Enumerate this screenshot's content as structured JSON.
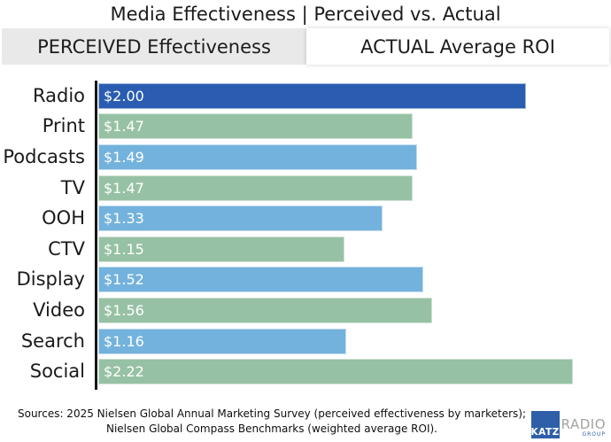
{
  "title": "Media Effectiveness | Perceived vs. Actual",
  "tabs": [
    {
      "label": "PERCEIVED Effectiveness"
    },
    {
      "label": "ACTUAL Average ROI"
    }
  ],
  "chart_data": {
    "type": "bar",
    "orientation": "horizontal",
    "title": "Media Effectiveness | Perceived vs. Actual",
    "xlabel": "",
    "ylabel": "",
    "xlim": [
      0,
      2.38
    ],
    "grid": false,
    "legend": "none",
    "value_prefix": "$",
    "categories": [
      "Radio",
      "Print",
      "Podcasts",
      "TV",
      "OOH",
      "CTV",
      "Display",
      "Video",
      "Search",
      "Social"
    ],
    "values": [
      2.0,
      1.47,
      1.49,
      1.47,
      1.33,
      1.15,
      1.52,
      1.56,
      1.16,
      2.22
    ],
    "value_labels": [
      "$2.00",
      "$1.47",
      "$1.49",
      "$1.47",
      "$1.33",
      "$1.15",
      "$1.52",
      "$1.56",
      "$1.16",
      "$2.22"
    ],
    "bar_colors": [
      "#2a5db1",
      "#97c1a4",
      "#73b2dd",
      "#97c1a4",
      "#73b2dd",
      "#97c1a4",
      "#73b2dd",
      "#97c1a4",
      "#73b2dd",
      "#97c1a4"
    ],
    "highlight_category": "Radio"
  },
  "colors": {
    "highlight_blue": "#2a5db1",
    "green": "#97c1a4",
    "light_blue": "#73b2dd",
    "tab_gray": "#e9e9e9",
    "axis": "#161616",
    "logo_blue": "#2e5fa8"
  },
  "footer": {
    "line1": "Sources: 2025 Nielsen Global Annual Marketing Survey (perceived effectiveness by marketers);",
    "line2": "Nielsen Global Compass Benchmarks (weighted average ROI)."
  },
  "logo": {
    "katz": "KATZ",
    "radio": "RADIO",
    "group": "GROUP"
  }
}
